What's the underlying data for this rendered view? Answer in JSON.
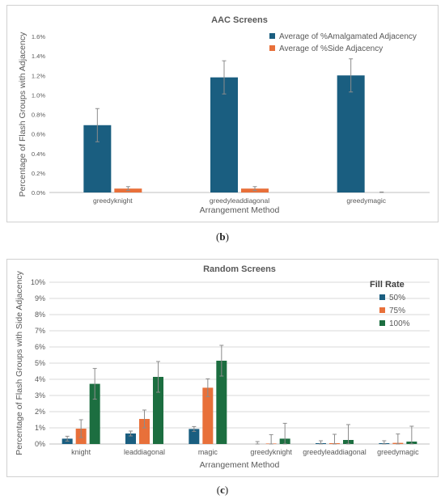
{
  "captions": {
    "b_open": "(",
    "b_letter": "b",
    "b_close": ")",
    "c_open": "(",
    "c_letter": "c",
    "c_close": ")"
  },
  "colors": {
    "blue": "#1a5e80",
    "orange": "#e8703a",
    "green": "#1c6e40",
    "grid": "#d9d9d9",
    "axis": "#bfbfbf",
    "text": "#595959",
    "error": "#8c8c8c"
  },
  "chart_data": [
    {
      "type": "bar",
      "title": "AAC Screens",
      "xlabel": "Arrangement Method",
      "ylabel": "Percentage of Flash Groups with Adjacency",
      "categories": [
        "greedyknight",
        "greedyleaddiagonal",
        "greedymagic"
      ],
      "ylim": [
        0,
        1.6
      ],
      "yticks": [
        "0.0%",
        "0.2%",
        "0.4%",
        "0.6%",
        "0.8%",
        "1.0%",
        "1.2%",
        "1.4%",
        "1.6%"
      ],
      "grid": false,
      "legend_position": "top-right",
      "series": [
        {
          "name": "Average of %Amalgamated Adjacency",
          "color": "#1a5e80",
          "values": [
            0.69,
            1.18,
            1.2
          ],
          "errors": [
            0.17,
            0.17,
            0.17
          ]
        },
        {
          "name": "Average of %Side Adjacency",
          "color": "#e8703a",
          "values": [
            0.04,
            0.04,
            0.0
          ],
          "errors": [
            0.02,
            0.02,
            0.005
          ]
        }
      ]
    },
    {
      "type": "bar",
      "title": "Random Screens",
      "xlabel": "Arrangement Method",
      "ylabel": "Percentage of Flash Groups with Side Adjacency",
      "categories": [
        "knight",
        "leaddiagonal",
        "magic",
        "greedyknight",
        "greedyleaddiagonal",
        "greedymagic"
      ],
      "ylim": [
        0,
        10
      ],
      "yticks": [
        "0%",
        "1%",
        "2%",
        "3%",
        "4%",
        "5%",
        "6%",
        "7%",
        "8%",
        "9%",
        "10%"
      ],
      "grid": true,
      "legend_title": "Fill Rate",
      "legend_position": "top-right",
      "series": [
        {
          "name": "50%",
          "color": "#1a5e80",
          "values": [
            0.33,
            0.65,
            0.93,
            0.0,
            0.05,
            0.05
          ],
          "errors": [
            0.15,
            0.15,
            0.15,
            0.15,
            0.15,
            0.15
          ]
        },
        {
          "name": "75%",
          "color": "#e8703a",
          "values": [
            0.95,
            1.55,
            3.48,
            0.03,
            0.05,
            0.07
          ],
          "errors": [
            0.55,
            0.55,
            0.55,
            0.55,
            0.55,
            0.55
          ]
        },
        {
          "name": "100%",
          "color": "#1c6e40",
          "values": [
            3.72,
            4.15,
            5.15,
            0.33,
            0.25,
            0.15
          ],
          "errors": [
            0.95,
            0.95,
            0.95,
            0.95,
            0.95,
            0.95
          ]
        }
      ]
    }
  ]
}
